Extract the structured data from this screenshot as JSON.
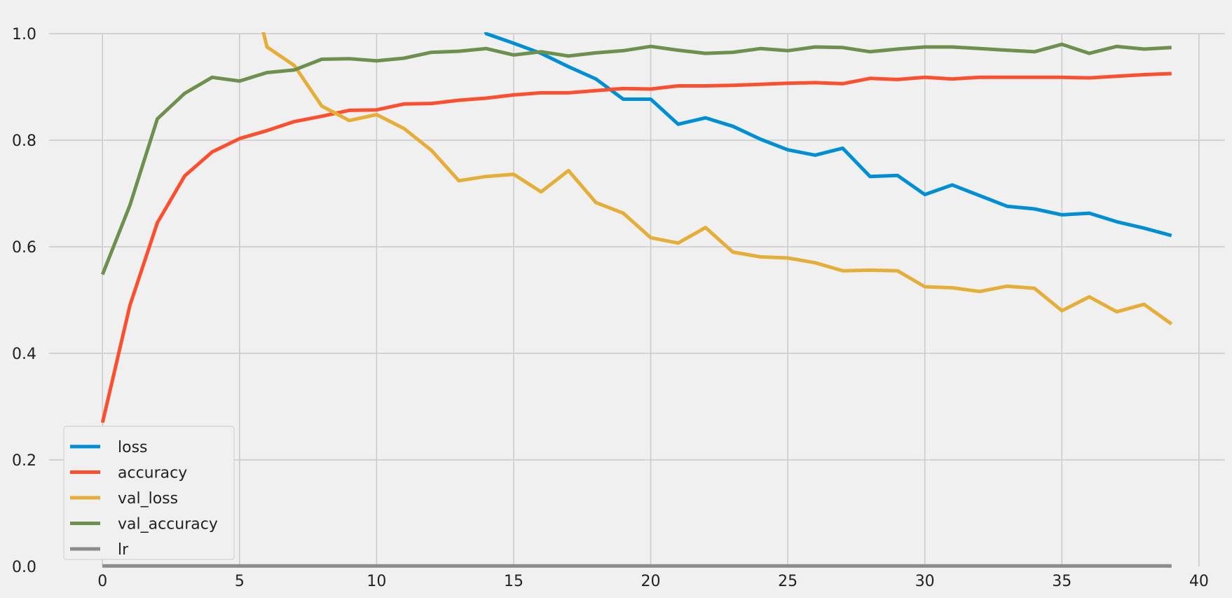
{
  "chart_data": {
    "type": "line",
    "title": "",
    "xlabel": "",
    "ylabel": "",
    "xlim": [
      -1.95,
      40.95
    ],
    "ylim": [
      0,
      1.0
    ],
    "xticks": [
      "0",
      "5",
      "10",
      "15",
      "20",
      "25",
      "30",
      "35",
      "40"
    ],
    "yticks": [
      "0.0",
      "0.2",
      "0.4",
      "0.6",
      "0.8",
      "1.0"
    ],
    "grid": true,
    "legend_position": "lower-left",
    "x": [
      0,
      1,
      2,
      3,
      4,
      5,
      6,
      7,
      8,
      9,
      10,
      11,
      12,
      13,
      14,
      15,
      16,
      17,
      18,
      19,
      20,
      21,
      22,
      23,
      24,
      25,
      26,
      27,
      28,
      29,
      30,
      31,
      32,
      33,
      34,
      35,
      36,
      37,
      38,
      39
    ],
    "series": [
      {
        "name": "loss",
        "color": "#008fd5",
        "values": [
          null,
          null,
          null,
          null,
          null,
          null,
          null,
          null,
          null,
          null,
          null,
          null,
          null,
          null,
          1.0,
          0.982,
          0.963,
          0.938,
          0.915,
          0.877,
          0.877,
          0.83,
          0.842,
          0.826,
          0.802,
          0.782,
          0.772,
          0.785,
          0.732,
          0.734,
          0.698,
          0.716,
          0.696,
          0.676,
          0.671,
          0.66,
          0.663,
          0.647,
          0.635,
          0.621
        ]
      },
      {
        "name": "accuracy",
        "color": "#fc4f30",
        "values": [
          0.27,
          0.49,
          0.645,
          0.733,
          0.778,
          0.803,
          0.818,
          0.835,
          0.845,
          0.856,
          0.857,
          0.868,
          0.869,
          0.875,
          0.879,
          0.885,
          0.889,
          0.889,
          0.893,
          0.897,
          0.896,
          0.902,
          0.902,
          0.903,
          0.905,
          0.907,
          0.908,
          0.906,
          0.916,
          0.914,
          0.918,
          0.915,
          0.918,
          0.918,
          0.918,
          0.918,
          0.917,
          0.92,
          0.923,
          0.925
        ]
      },
      {
        "name": "val_loss",
        "color": "#e5ae38",
        "values": [
          null,
          null,
          null,
          null,
          null,
          null,
          0.975,
          0.94,
          0.864,
          0.837,
          0.848,
          0.822,
          0.781,
          0.724,
          0.732,
          0.736,
          0.703,
          0.743,
          0.683,
          0.663,
          0.617,
          0.607,
          0.636,
          0.59,
          0.581,
          0.579,
          0.57,
          0.555,
          0.556,
          0.555,
          0.525,
          0.523,
          0.516,
          0.526,
          0.522,
          0.48,
          0.506,
          0.478,
          0.492,
          0.455
        ]
      },
      {
        "name": "val_accuracy",
        "color": "#6d904f",
        "values": [
          0.548,
          0.678,
          0.84,
          0.888,
          0.918,
          0.911,
          0.927,
          0.932,
          0.952,
          0.953,
          0.949,
          0.954,
          0.965,
          0.967,
          0.972,
          0.96,
          0.966,
          0.958,
          0.964,
          0.968,
          0.976,
          0.969,
          0.963,
          0.965,
          0.972,
          0.968,
          0.975,
          0.974,
          0.966,
          0.971,
          0.975,
          0.975,
          0.972,
          0.969,
          0.966,
          0.98,
          0.963,
          0.976,
          0.971,
          0.974
        ]
      },
      {
        "name": "lr",
        "color": "#8b8b8b",
        "values": [
          0.001,
          0.001,
          0.001,
          0.001,
          0.001,
          0.001,
          0.001,
          0.001,
          0.001,
          0.001,
          0.001,
          0.001,
          0.001,
          0.001,
          0.001,
          0.001,
          0.001,
          0.001,
          0.001,
          0.001,
          0.001,
          0.001,
          0.001,
          0.001,
          0.001,
          0.001,
          0.001,
          0.001,
          0.001,
          0.001,
          0.001,
          0.001,
          0.001,
          0.001,
          0.001,
          0.001,
          0.001,
          0.001,
          0.001,
          0.001
        ]
      }
    ]
  }
}
